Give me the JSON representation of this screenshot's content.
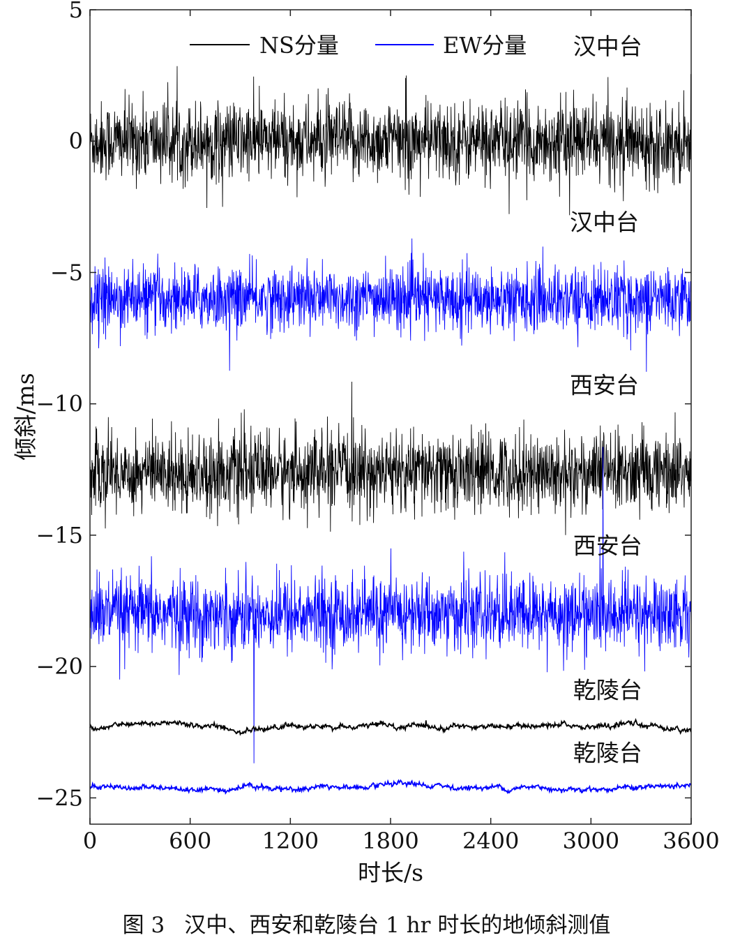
{
  "chart_data": {
    "type": "line",
    "xlabel": "时长/s",
    "ylabel": "倾斜/ms",
    "xlim": [
      0,
      3600
    ],
    "ylim": [
      -26,
      5
    ],
    "xticks": [
      "0",
      "600",
      "1200",
      "1800",
      "2400",
      "3000",
      "3600"
    ],
    "xtick_values": [
      0,
      600,
      1200,
      1800,
      2400,
      3000,
      3600
    ],
    "yticks": [
      "5",
      "0",
      "−5",
      "−10",
      "−15",
      "−20",
      "−25"
    ],
    "ytick_values": [
      5,
      0,
      -5,
      -10,
      -15,
      -20,
      -25
    ],
    "grid": false,
    "legend": {
      "placement": "top",
      "entries": [
        {
          "label": "NS分量",
          "color": "#000000"
        },
        {
          "label": "EW分量",
          "color": "#0000ff"
        }
      ]
    },
    "series": [
      {
        "station": "汉中台",
        "component": "NS",
        "color": "#000000",
        "baseline": 0.0,
        "noise_amplitude": 0.75,
        "x_range": [
          0,
          3600
        ]
      },
      {
        "station": "汉中台",
        "component": "EW",
        "color": "#0000ff",
        "baseline": -6.0,
        "noise_amplitude": 0.6,
        "x_range": [
          0,
          3600
        ]
      },
      {
        "station": "西安台",
        "component": "NS",
        "color": "#000000",
        "baseline": -12.6,
        "noise_amplitude": 0.75,
        "x_range": [
          0,
          3600
        ]
      },
      {
        "station": "西安台",
        "component": "EW",
        "color": "#0000ff",
        "baseline": -18.0,
        "noise_amplitude": 0.7,
        "x_range": [
          0,
          3600
        ]
      },
      {
        "station": "乾陵台",
        "component": "NS",
        "color": "#000000",
        "baseline": -22.3,
        "noise_amplitude": 0.08,
        "x_range": [
          0,
          3600
        ]
      },
      {
        "station": "乾陵台",
        "component": "EW",
        "color": "#0000ff",
        "baseline": -24.6,
        "noise_amplitude": 0.08,
        "x_range": [
          0,
          3600
        ]
      }
    ],
    "annotations": [
      {
        "text": "汉中台",
        "x": 3100,
        "y": 3.3
      },
      {
        "text": "汉中台",
        "x": 3080,
        "y": -3.4
      },
      {
        "text": "西安台",
        "x": 3080,
        "y": -9.6
      },
      {
        "text": "西安台",
        "x": 3100,
        "y": -15.7
      },
      {
        "text": "乾陵台",
        "x": 3100,
        "y": -21.2
      },
      {
        "text": "乾陵台",
        "x": 3100,
        "y": -23.6
      }
    ]
  },
  "caption": {
    "number": "图 3",
    "text": "汉中、西安和乾陵台 1 hr 时长的地倾斜测值"
  }
}
